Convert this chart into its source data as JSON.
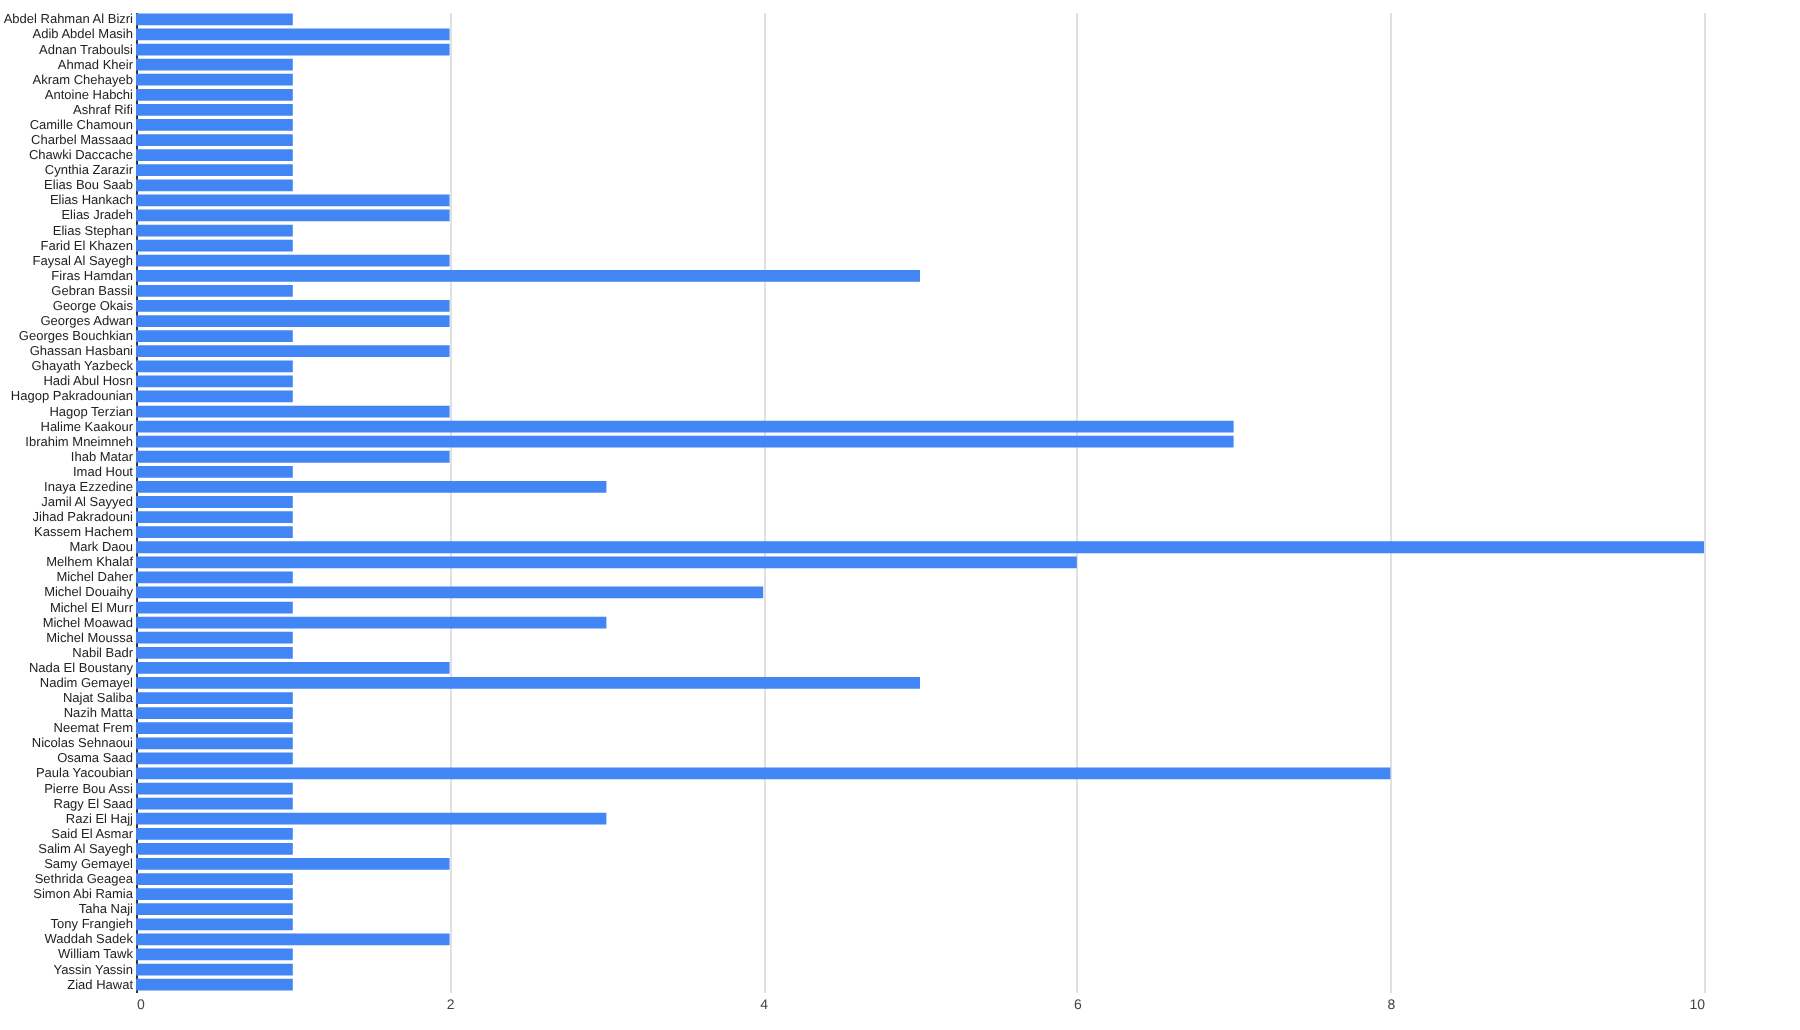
{
  "chart_data": {
    "type": "bar",
    "orientation": "horizontal",
    "color": "#4285f4",
    "grid": "x",
    "xlim": [
      0,
      10
    ],
    "xticks": [
      0,
      2,
      4,
      6,
      8,
      10
    ],
    "categories": [
      "Abdel Rahman Al Bizri",
      "Adib Abdel Masih",
      "Adnan Traboulsi",
      "Ahmad Kheir",
      "Akram Chehayeb",
      "Antoine Habchi",
      "Ashraf Rifi",
      "Camille Chamoun",
      "Charbel Massaad",
      "Chawki Daccache",
      "Cynthia Zarazir",
      "Elias Bou Saab",
      "Elias Hankach",
      "Elias Jradeh",
      "Elias Stephan",
      "Farid El Khazen",
      "Faysal Al Sayegh",
      "Firas Hamdan",
      "Gebran Bassil",
      "George Okais",
      "Georges Adwan",
      "Georges Bouchkian",
      "Ghassan Hasbani",
      "Ghayath Yazbeck",
      "Hadi Abul Hosn",
      "Hagop Pakradounian",
      "Hagop Terzian",
      "Halime Kaakour",
      "Ibrahim Mneimneh",
      "Ihab Matar",
      "Imad Hout",
      "Inaya Ezzedine",
      "Jamil Al Sayyed",
      "Jihad Pakradouni",
      "Kassem Hachem",
      "Mark Daou",
      "Melhem Khalaf",
      "Michel Daher",
      "Michel Douaihy",
      "Michel El Murr",
      "Michel Moawad",
      "Michel Moussa",
      "Nabil Badr",
      "Nada El Boustany",
      "Nadim Gemayel",
      "Najat Saliba",
      "Nazih Matta",
      "Neemat Frem",
      "Nicolas Sehnaoui",
      "Osama Saad",
      "Paula Yacoubian",
      "Pierre Bou Assi",
      "Ragy El Saad",
      "Razi El Hajj",
      "Said El Asmar",
      "Salim Al Sayegh",
      "Samy Gemayel",
      "Sethrida Geagea",
      "Simon Abi Ramia",
      "Taha Naji",
      "Tony Frangieh",
      "Waddah Sadek",
      "William Tawk",
      "Yassin Yassin",
      "Ziad Hawat"
    ],
    "values": [
      1,
      2,
      2,
      1,
      1,
      1,
      1,
      1,
      1,
      1,
      1,
      1,
      2,
      2,
      1,
      1,
      2,
      5,
      1,
      2,
      2,
      1,
      2,
      1,
      1,
      1,
      2,
      7,
      7,
      2,
      1,
      3,
      1,
      1,
      1,
      10,
      6,
      1,
      4,
      1,
      3,
      1,
      1,
      2,
      5,
      1,
      1,
      1,
      1,
      1,
      8,
      1,
      1,
      3,
      1,
      1,
      2,
      1,
      1,
      1,
      1,
      2,
      1,
      1,
      1
    ]
  }
}
